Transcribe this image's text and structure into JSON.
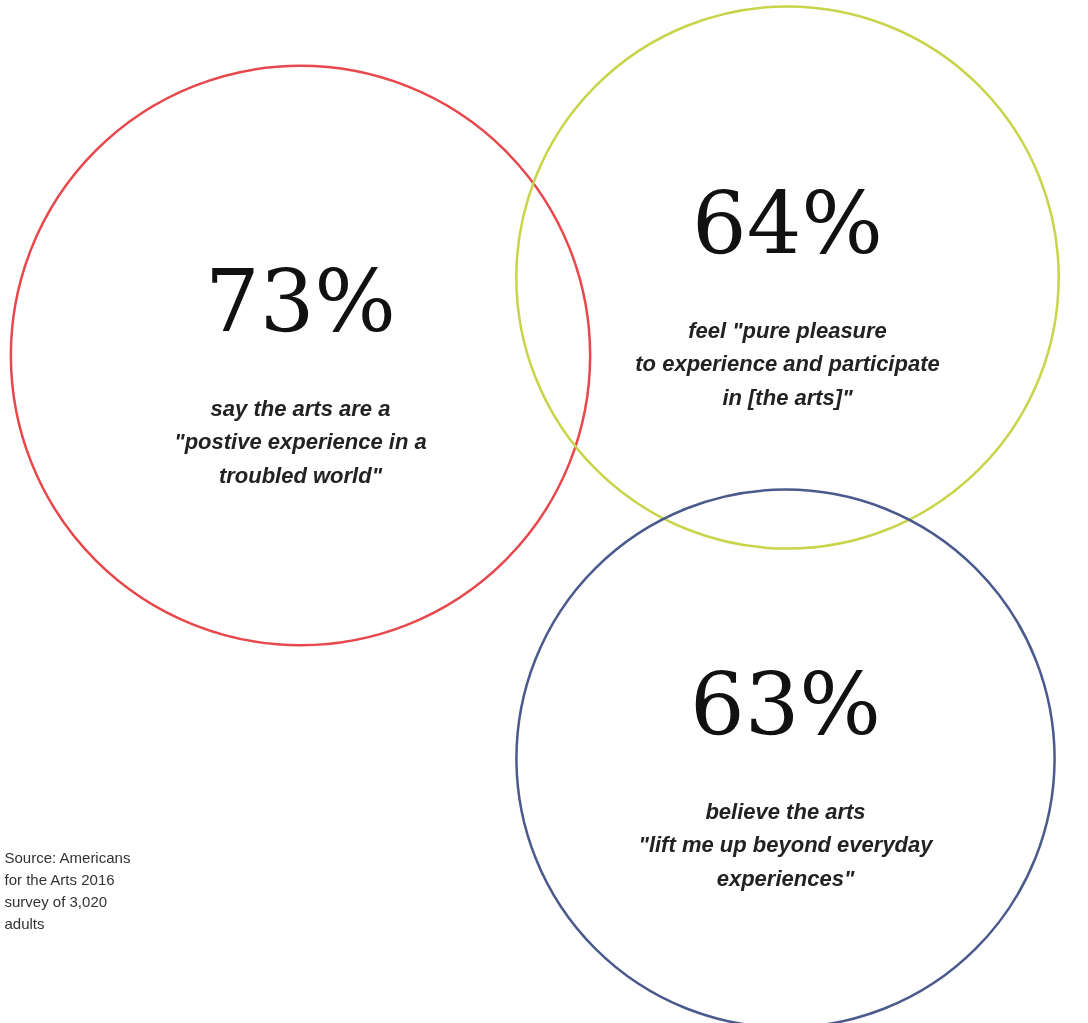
{
  "chart_data": {
    "type": "other",
    "categories": [
      "say the arts are a\n\"postive experience in a\ntroubled world\"",
      "feel \"pure pleasure\nto experience and participate\nin [the arts]\"",
      "believe the arts\n\"lift me up beyond everyday\nexperiences\""
    ],
    "values": [
      73,
      64,
      63
    ],
    "value_labels": [
      "73%",
      "64%",
      "63%"
    ],
    "colors": [
      "#e8474c",
      "#c8d44a",
      "#4a5a8c"
    ],
    "annotations": [
      "Source: Americans for the Arts 2016 survey of 3,020 adults"
    ]
  }
}
